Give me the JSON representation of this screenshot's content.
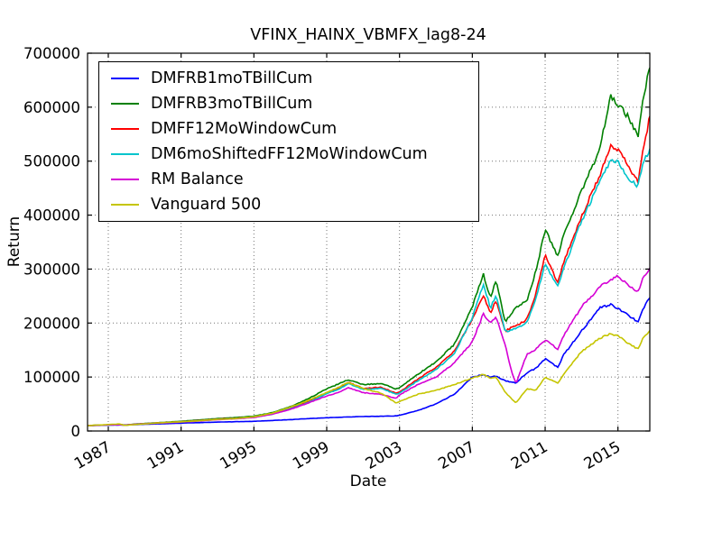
{
  "chart_data": {
    "type": "line",
    "title": "VFINX_HAINX_VBMFX_lag8-24",
    "xlabel": "Date",
    "ylabel": "Return",
    "xlim": [
      1985.86,
      2016.75
    ],
    "ylim": [
      0,
      700000
    ],
    "x_ticks": [
      1987,
      1991,
      1995,
      1999,
      2003,
      2007,
      2011,
      2015
    ],
    "y_ticks": [
      0,
      100000,
      200000,
      300000,
      400000,
      500000,
      600000,
      700000
    ],
    "grid": true,
    "grid_style": "dotted",
    "legend_position": "upper left",
    "x_tick_rotation_deg": -30,
    "x": [
      1985.86,
      1987.0,
      1987.6,
      1987.9,
      1988.5,
      1990.0,
      1991.0,
      1992.0,
      1993.0,
      1994.0,
      1995.0,
      1996.0,
      1997.0,
      1998.0,
      1999.0,
      1999.7,
      2000.2,
      2001.0,
      2002.0,
      2002.8,
      2003.0,
      2004.0,
      2005.0,
      2006.0,
      2007.0,
      2007.6,
      2008.0,
      2008.3,
      2008.8,
      2009.2,
      2009.4,
      2010.0,
      2010.5,
      2011.0,
      2011.7,
      2012.0,
      2013.0,
      2014.0,
      2014.6,
      2015.0,
      2015.6,
      2016.1,
      2016.4,
      2016.75
    ],
    "series": [
      {
        "name": "DMFRB1moTBillCum",
        "color": "#0000ff",
        "values": [
          10000,
          10800,
          11200,
          11300,
          11800,
          13500,
          14500,
          15500,
          16500,
          17200,
          18000,
          19500,
          21000,
          23000,
          24500,
          25500,
          26000,
          26800,
          27400,
          28000,
          29000,
          38000,
          50000,
          68000,
          100000,
          104000,
          100000,
          102000,
          93000,
          90000,
          89000,
          108000,
          116000,
          134000,
          118000,
          140000,
          185000,
          228000,
          234000,
          227000,
          214000,
          202000,
          228000,
          247000
        ]
      },
      {
        "name": "DMFRB3moTBillCum",
        "color": "#008000",
        "values": [
          10000,
          11500,
          12000,
          11000,
          13000,
          16000,
          18000,
          20500,
          23000,
          25000,
          27500,
          34000,
          45000,
          60000,
          78000,
          88000,
          95000,
          86000,
          88000,
          78000,
          80000,
          105000,
          128000,
          160000,
          230000,
          291000,
          245000,
          280000,
          202000,
          220000,
          228000,
          242000,
          297000,
          372000,
          325000,
          362000,
          444000,
          523000,
          620000,
          605000,
          580000,
          545000,
          620000,
          673000
        ]
      },
      {
        "name": "DMFF12MoWindowCum",
        "color": "#ff0000",
        "values": [
          10000,
          11300,
          11800,
          10800,
          12500,
          15500,
          17000,
          19500,
          22000,
          23500,
          26000,
          32000,
          42000,
          55000,
          71000,
          80000,
          90000,
          79000,
          81000,
          70000,
          72000,
          96000,
          118000,
          147000,
          207000,
          252000,
          218000,
          242000,
          185000,
          192000,
          195000,
          207000,
          256000,
          327000,
          274000,
          312000,
          398000,
          473000,
          528000,
          523000,
          490000,
          460000,
          525000,
          583000
        ]
      },
      {
        "name": "DM6moShiftedFF12MoWindowCum",
        "color": "#00c4cc",
        "values": [
          10000,
          11200,
          11600,
          10700,
          12300,
          15200,
          16800,
          19000,
          21500,
          23000,
          25500,
          31000,
          41000,
          53000,
          69000,
          78000,
          88000,
          77000,
          79000,
          68000,
          70000,
          93000,
          114000,
          142000,
          210000,
          272000,
          228000,
          252000,
          184000,
          188000,
          191000,
          200000,
          248000,
          310000,
          267000,
          300000,
          389000,
          461000,
          500000,
          497000,
          465000,
          453000,
          498000,
          523000
        ]
      },
      {
        "name": "RM Balance",
        "color": "#d500d5",
        "values": [
          10000,
          11300,
          11700,
          10800,
          12400,
          15000,
          16500,
          18500,
          21000,
          22500,
          25000,
          31000,
          40000,
          52000,
          65000,
          72000,
          80000,
          71000,
          68000,
          60000,
          67000,
          86000,
          100000,
          126000,
          165000,
          217000,
          200000,
          212000,
          160000,
          105000,
          88000,
          142000,
          152000,
          169000,
          152000,
          176000,
          230000,
          267000,
          280000,
          287000,
          268000,
          258000,
          285000,
          302000
        ]
      },
      {
        "name": "Vanguard 500",
        "color": "#c5c500",
        "values": [
          10000,
          12000,
          13000,
          10500,
          12000,
          15500,
          17000,
          19000,
          21500,
          23000,
          26500,
          33000,
          44000,
          57000,
          71000,
          82000,
          90000,
          79000,
          70000,
          52000,
          55000,
          68000,
          75000,
          86000,
          98000,
          105000,
          98000,
          100000,
          72000,
          58000,
          52000,
          78000,
          76000,
          100000,
          89000,
          104000,
          147000,
          172000,
          180000,
          176000,
          162000,
          152000,
          173000,
          186000
        ]
      }
    ]
  }
}
